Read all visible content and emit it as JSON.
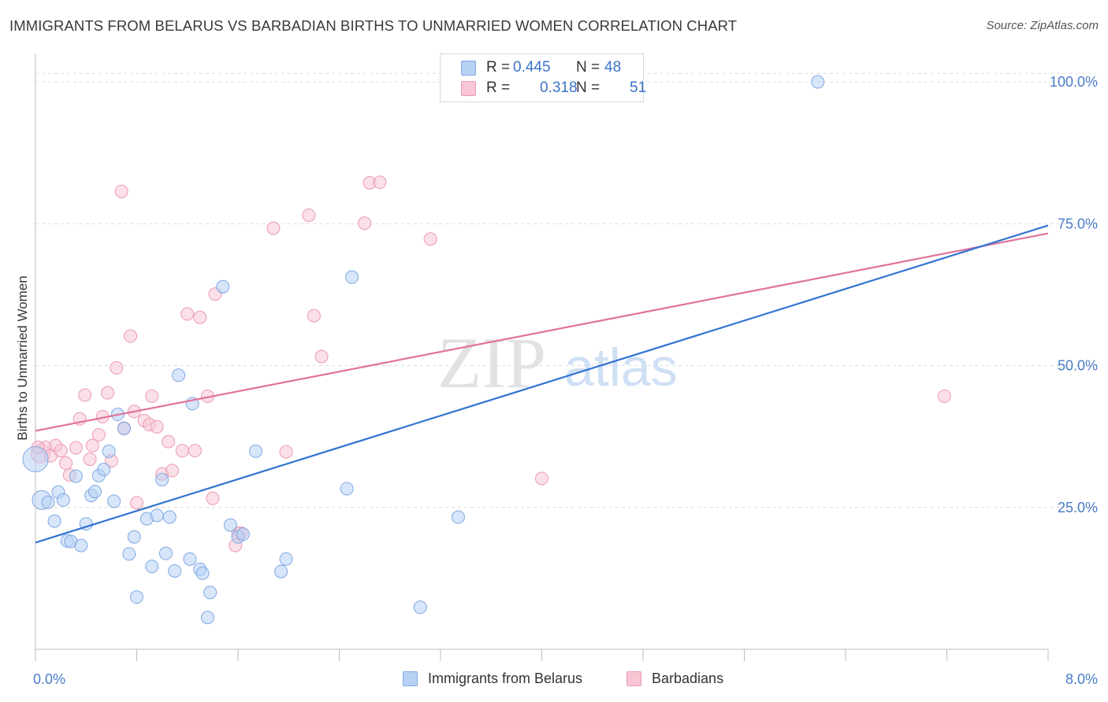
{
  "header": {
    "title": "IMMIGRANTS FROM BELARUS VS BARBADIAN BIRTHS TO UNMARRIED WOMEN CORRELATION CHART",
    "source": "Source: ZipAtlas.com"
  },
  "watermark": {
    "zip": "ZIP",
    "atlas": "atlas"
  },
  "legend_top": {
    "rows": [
      {
        "r_label": "R =",
        "r_value": "0.445",
        "n_label": "N =",
        "n_value": "48"
      },
      {
        "r_label": "R =",
        "r_value": "0.318",
        "n_label": "N =",
        "n_value": "51"
      }
    ]
  },
  "legend_bottom": {
    "series1": "Immigrants from Belarus",
    "series2": "Barbadians"
  },
  "chart_data": {
    "type": "scatter",
    "title": "IMMIGRANTS FROM BELARUS VS BARBADIAN BIRTHS TO UNMARRIED WOMEN CORRELATION CHART",
    "xlabel": "",
    "ylabel": "Births to Unmarried Women",
    "xlim": [
      0,
      8
    ],
    "ylim": [
      0,
      105
    ],
    "x_tick_labels": [
      "0.0%",
      "8.0%"
    ],
    "y_ticks": [
      25,
      50,
      75,
      100
    ],
    "y_tick_labels": [
      "25.0%",
      "50.0%",
      "75.0%",
      "100.0%"
    ],
    "grid": "horizontal dashed",
    "legend_position": "top-center and bottom",
    "colors": {
      "series1_fill": "#b7d1f5",
      "series1_stroke": "#7fa8e0",
      "series1_line": "#3273d1",
      "series2_fill": "#f8c6d4",
      "series2_stroke": "#eb9ab4",
      "series2_line": "#e0739a",
      "axis_label": "#4a7cc9"
    },
    "series": [
      {
        "name": "Immigrants from Belarus",
        "R": 0.445,
        "N": 48,
        "trend": {
          "x": [
            0,
            8
          ],
          "y": [
            18.8,
            74.7
          ]
        },
        "points": [
          [
            0.0,
            33.5,
            3
          ],
          [
            0.05,
            26.3,
            2
          ],
          [
            0.1,
            25.9,
            1
          ],
          [
            0.15,
            22.6,
            1
          ],
          [
            0.18,
            27.7,
            1
          ],
          [
            0.22,
            26.3,
            1
          ],
          [
            0.25,
            19.1,
            1
          ],
          [
            0.28,
            19.0,
            1
          ],
          [
            0.32,
            30.5,
            1
          ],
          [
            0.36,
            18.3,
            1
          ],
          [
            0.4,
            22.1,
            1
          ],
          [
            0.44,
            27.1,
            1
          ],
          [
            0.47,
            27.8,
            1
          ],
          [
            0.5,
            30.6,
            1
          ],
          [
            0.54,
            31.7,
            1
          ],
          [
            0.58,
            34.9,
            1
          ],
          [
            0.62,
            26.1,
            1
          ],
          [
            0.65,
            41.4,
            1
          ],
          [
            0.7,
            38.9,
            1
          ],
          [
            0.74,
            16.8,
            1
          ],
          [
            0.78,
            19.8,
            1
          ],
          [
            0.8,
            9.2,
            1
          ],
          [
            0.88,
            23.0,
            1
          ],
          [
            0.92,
            14.6,
            1
          ],
          [
            0.96,
            23.6,
            1
          ],
          [
            1.0,
            29.9,
            1
          ],
          [
            1.03,
            16.9,
            1
          ],
          [
            1.06,
            23.3,
            1
          ],
          [
            1.1,
            13.8,
            1
          ],
          [
            1.13,
            48.3,
            1
          ],
          [
            1.22,
            15.9,
            1
          ],
          [
            1.24,
            43.3,
            1
          ],
          [
            1.3,
            14.1,
            1
          ],
          [
            1.32,
            13.4,
            1
          ],
          [
            1.36,
            5.6,
            1
          ],
          [
            1.38,
            10.0,
            1
          ],
          [
            1.48,
            63.9,
            1
          ],
          [
            1.54,
            21.9,
            1
          ],
          [
            1.6,
            19.8,
            1
          ],
          [
            1.64,
            20.3,
            1
          ],
          [
            1.74,
            34.9,
            1
          ],
          [
            1.94,
            13.7,
            1
          ],
          [
            1.98,
            15.9,
            1
          ],
          [
            2.46,
            28.3,
            1
          ],
          [
            2.5,
            65.6,
            1
          ],
          [
            3.04,
            7.4,
            1
          ],
          [
            3.34,
            23.3,
            1
          ],
          [
            6.18,
            100.0,
            1
          ]
        ]
      },
      {
        "name": "Barbadians",
        "R": 0.318,
        "N": 51,
        "trend": {
          "x": [
            0,
            8
          ],
          "y": [
            38.5,
            73.3
          ]
        },
        "points": [
          [
            0.04,
            34.5,
            2
          ],
          [
            0.08,
            35.6,
            1
          ],
          [
            0.12,
            34.1,
            1
          ],
          [
            0.16,
            35.9,
            1
          ],
          [
            0.2,
            35.0,
            1
          ],
          [
            0.24,
            32.8,
            1
          ],
          [
            0.27,
            30.7,
            1
          ],
          [
            0.32,
            35.5,
            1
          ],
          [
            0.35,
            40.6,
            1
          ],
          [
            0.39,
            44.8,
            1
          ],
          [
            0.43,
            33.5,
            1
          ],
          [
            0.45,
            35.9,
            1
          ],
          [
            0.5,
            37.8,
            1
          ],
          [
            0.53,
            41.0,
            1
          ],
          [
            0.57,
            45.2,
            1
          ],
          [
            0.6,
            33.2,
            1
          ],
          [
            0.64,
            49.6,
            1
          ],
          [
            0.68,
            80.7,
            1
          ],
          [
            0.7,
            39.0,
            1
          ],
          [
            0.75,
            55.2,
            1
          ],
          [
            0.78,
            41.9,
            1
          ],
          [
            0.8,
            25.8,
            1
          ],
          [
            0.86,
            40.3,
            1
          ],
          [
            0.9,
            39.6,
            1
          ],
          [
            0.92,
            44.6,
            1
          ],
          [
            0.96,
            39.2,
            1
          ],
          [
            1.0,
            30.9,
            1
          ],
          [
            1.05,
            36.6,
            1
          ],
          [
            1.08,
            31.5,
            1
          ],
          [
            1.16,
            35.0,
            1
          ],
          [
            1.2,
            59.1,
            1
          ],
          [
            1.26,
            35.0,
            1
          ],
          [
            1.3,
            58.5,
            1
          ],
          [
            1.36,
            44.6,
            1
          ],
          [
            1.4,
            26.6,
            1
          ],
          [
            1.42,
            62.6,
            1
          ],
          [
            1.6,
            20.4,
            1
          ],
          [
            1.58,
            18.3,
            1
          ],
          [
            1.62,
            20.5,
            1
          ],
          [
            1.88,
            74.2,
            1
          ],
          [
            1.98,
            34.8,
            1
          ],
          [
            2.16,
            76.5,
            1
          ],
          [
            2.2,
            58.8,
            1
          ],
          [
            2.26,
            51.6,
            1
          ],
          [
            2.6,
            75.1,
            1
          ],
          [
            2.64,
            82.2,
            1
          ],
          [
            2.72,
            82.3,
            1
          ],
          [
            3.12,
            72.3,
            1
          ],
          [
            4.0,
            30.1,
            1
          ],
          [
            7.18,
            44.6,
            1
          ],
          [
            0.02,
            35.6,
            1
          ]
        ]
      }
    ]
  }
}
